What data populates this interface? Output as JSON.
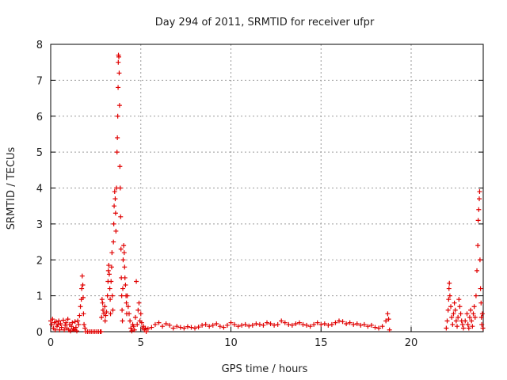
{
  "chart_data": {
    "type": "scatter",
    "title": "Day 294 of 2011, SRMTID for receiver ufpr",
    "xlabel": "GPS time / hours",
    "ylabel": "SRMTID / TECUs",
    "xlim": [
      0,
      24
    ],
    "ylim": [
      0,
      8
    ],
    "xticks": [
      0,
      5,
      10,
      15,
      20
    ],
    "yticks": [
      0,
      1,
      2,
      3,
      4,
      5,
      6,
      7,
      8
    ],
    "grid": true,
    "marker": "+",
    "series": [
      {
        "name": "SRMTID",
        "color": "#e00000",
        "points": [
          [
            0.0,
            0.3
          ],
          [
            0.05,
            0.2
          ],
          [
            0.1,
            0.35
          ],
          [
            0.15,
            0.1
          ],
          [
            0.2,
            0.25
          ],
          [
            0.25,
            0.05
          ],
          [
            0.3,
            0.28
          ],
          [
            0.35,
            0.15
          ],
          [
            0.4,
            0.2
          ],
          [
            0.45,
            0.3
          ],
          [
            0.5,
            0.05
          ],
          [
            0.55,
            0.22
          ],
          [
            0.6,
            0.12
          ],
          [
            0.7,
            0.32
          ],
          [
            0.75,
            0.05
          ],
          [
            0.8,
            0.18
          ],
          [
            0.85,
            0.25
          ],
          [
            0.9,
            0.1
          ],
          [
            0.95,
            0.35
          ],
          [
            1.0,
            0.05
          ],
          [
            1.05,
            0.2
          ],
          [
            1.1,
            0.02
          ],
          [
            1.15,
            0.15
          ],
          [
            1.2,
            0.25
          ],
          [
            1.25,
            0.08
          ],
          [
            1.3,
            0.05
          ],
          [
            1.35,
            0.28
          ],
          [
            1.4,
            0.12
          ],
          [
            1.45,
            0.02
          ],
          [
            1.5,
            0.3
          ],
          [
            1.55,
            0.2
          ],
          [
            1.6,
            0.45
          ],
          [
            1.65,
            0.7
          ],
          [
            1.7,
            0.9
          ],
          [
            1.72,
            1.2
          ],
          [
            1.75,
            1.55
          ],
          [
            1.78,
            1.3
          ],
          [
            1.8,
            0.95
          ],
          [
            1.82,
            0.5
          ],
          [
            1.85,
            0.2
          ],
          [
            1.9,
            0.1
          ],
          [
            1.95,
            0.0
          ],
          [
            2.05,
            0.0
          ],
          [
            2.15,
            0.0
          ],
          [
            2.25,
            0.0
          ],
          [
            2.35,
            0.0
          ],
          [
            2.45,
            0.0
          ],
          [
            2.55,
            0.0
          ],
          [
            2.65,
            0.0
          ],
          [
            2.75,
            0.0
          ],
          [
            2.8,
            0.0
          ],
          [
            2.82,
            0.4
          ],
          [
            2.85,
            0.9
          ],
          [
            2.88,
            0.8
          ],
          [
            2.9,
            0.6
          ],
          [
            2.95,
            0.5
          ],
          [
            3.0,
            0.7
          ],
          [
            3.02,
            0.3
          ],
          [
            3.05,
            0.45
          ],
          [
            3.1,
            0.55
          ],
          [
            3.15,
            1.0
          ],
          [
            3.18,
            1.4
          ],
          [
            3.2,
            1.7
          ],
          [
            3.22,
            1.85
          ],
          [
            3.25,
            1.6
          ],
          [
            3.28,
            1.2
          ],
          [
            3.3,
            0.9
          ],
          [
            3.32,
            0.5
          ],
          [
            3.35,
            1.4
          ],
          [
            3.38,
            1.8
          ],
          [
            3.4,
            2.2
          ],
          [
            3.42,
            1.0
          ],
          [
            3.45,
            0.6
          ],
          [
            3.48,
            2.5
          ],
          [
            3.5,
            3.0
          ],
          [
            3.52,
            3.5
          ],
          [
            3.55,
            3.9
          ],
          [
            3.58,
            3.7
          ],
          [
            3.6,
            3.3
          ],
          [
            3.62,
            2.8
          ],
          [
            3.65,
            4.0
          ],
          [
            3.68,
            5.0
          ],
          [
            3.7,
            5.4
          ],
          [
            3.72,
            6.0
          ],
          [
            3.74,
            6.8
          ],
          [
            3.75,
            7.5
          ],
          [
            3.76,
            7.7
          ],
          [
            3.78,
            7.65
          ],
          [
            3.8,
            7.2
          ],
          [
            3.82,
            6.3
          ],
          [
            3.84,
            4.6
          ],
          [
            3.86,
            4.0
          ],
          [
            3.88,
            3.2
          ],
          [
            3.9,
            2.3
          ],
          [
            3.92,
            1.5
          ],
          [
            3.94,
            1.0
          ],
          [
            3.96,
            0.6
          ],
          [
            3.98,
            0.3
          ],
          [
            4.0,
            1.2
          ],
          [
            4.02,
            2.0
          ],
          [
            4.05,
            2.4
          ],
          [
            4.08,
            2.2
          ],
          [
            4.1,
            1.8
          ],
          [
            4.12,
            1.5
          ],
          [
            4.15,
            1.3
          ],
          [
            4.18,
            1.0
          ],
          [
            4.2,
            0.8
          ],
          [
            4.22,
            0.5
          ],
          [
            4.25,
            1.0
          ],
          [
            4.3,
            0.7
          ],
          [
            4.35,
            0.5
          ],
          [
            4.4,
            0.3
          ],
          [
            4.45,
            0.1
          ],
          [
            4.5,
            0.02
          ],
          [
            4.55,
            0.2
          ],
          [
            4.6,
            0.15
          ],
          [
            4.65,
            0.05
          ],
          [
            4.7,
            0.4
          ],
          [
            4.75,
            1.4
          ],
          [
            4.8,
            0.2
          ],
          [
            4.85,
            0.6
          ],
          [
            4.9,
            0.8
          ],
          [
            4.95,
            0.3
          ],
          [
            5.0,
            0.5
          ],
          [
            5.05,
            0.25
          ],
          [
            5.1,
            0.1
          ],
          [
            5.15,
            0.15
          ],
          [
            5.2,
            0.05
          ],
          [
            5.25,
            0.1
          ],
          [
            5.3,
            0.0
          ],
          [
            5.4,
            0.08
          ],
          [
            5.6,
            0.12
          ],
          [
            5.8,
            0.2
          ],
          [
            6.0,
            0.25
          ],
          [
            6.2,
            0.15
          ],
          [
            6.4,
            0.22
          ],
          [
            6.6,
            0.18
          ],
          [
            6.8,
            0.1
          ],
          [
            7.0,
            0.15
          ],
          [
            7.2,
            0.12
          ],
          [
            7.4,
            0.1
          ],
          [
            7.6,
            0.14
          ],
          [
            7.8,
            0.12
          ],
          [
            8.0,
            0.1
          ],
          [
            8.2,
            0.13
          ],
          [
            8.4,
            0.18
          ],
          [
            8.6,
            0.2
          ],
          [
            8.8,
            0.15
          ],
          [
            9.0,
            0.18
          ],
          [
            9.2,
            0.22
          ],
          [
            9.4,
            0.15
          ],
          [
            9.6,
            0.12
          ],
          [
            9.8,
            0.18
          ],
          [
            10.0,
            0.25
          ],
          [
            10.2,
            0.2
          ],
          [
            10.4,
            0.15
          ],
          [
            10.6,
            0.18
          ],
          [
            10.8,
            0.2
          ],
          [
            11.0,
            0.16
          ],
          [
            11.2,
            0.18
          ],
          [
            11.4,
            0.22
          ],
          [
            11.6,
            0.2
          ],
          [
            11.8,
            0.18
          ],
          [
            12.0,
            0.25
          ],
          [
            12.2,
            0.22
          ],
          [
            12.4,
            0.18
          ],
          [
            12.6,
            0.2
          ],
          [
            12.8,
            0.3
          ],
          [
            13.0,
            0.25
          ],
          [
            13.2,
            0.2
          ],
          [
            13.4,
            0.18
          ],
          [
            13.6,
            0.22
          ],
          [
            13.8,
            0.25
          ],
          [
            14.0,
            0.2
          ],
          [
            14.2,
            0.18
          ],
          [
            14.4,
            0.15
          ],
          [
            14.6,
            0.2
          ],
          [
            14.8,
            0.25
          ],
          [
            15.0,
            0.2
          ],
          [
            15.2,
            0.22
          ],
          [
            15.4,
            0.18
          ],
          [
            15.6,
            0.2
          ],
          [
            15.8,
            0.25
          ],
          [
            16.0,
            0.3
          ],
          [
            16.2,
            0.28
          ],
          [
            16.4,
            0.22
          ],
          [
            16.6,
            0.25
          ],
          [
            16.8,
            0.2
          ],
          [
            17.0,
            0.22
          ],
          [
            17.2,
            0.18
          ],
          [
            17.4,
            0.2
          ],
          [
            17.6,
            0.15
          ],
          [
            17.8,
            0.18
          ],
          [
            18.0,
            0.12
          ],
          [
            18.2,
            0.1
          ],
          [
            18.4,
            0.15
          ],
          [
            18.6,
            0.3
          ],
          [
            18.7,
            0.5
          ],
          [
            18.75,
            0.35
          ],
          [
            18.8,
            0.05
          ],
          [
            21.95,
            0.1
          ],
          [
            22.0,
            0.3
          ],
          [
            22.05,
            0.6
          ],
          [
            22.08,
            0.9
          ],
          [
            22.1,
            1.2
          ],
          [
            22.12,
            1.35
          ],
          [
            22.15,
            1.0
          ],
          [
            22.2,
            0.7
          ],
          [
            22.25,
            0.4
          ],
          [
            22.3,
            0.2
          ],
          [
            22.35,
            0.5
          ],
          [
            22.4,
            0.8
          ],
          [
            22.45,
            0.6
          ],
          [
            22.5,
            0.3
          ],
          [
            22.55,
            0.15
          ],
          [
            22.6,
            0.4
          ],
          [
            22.65,
            0.9
          ],
          [
            22.7,
            0.7
          ],
          [
            22.75,
            0.5
          ],
          [
            22.8,
            0.3
          ],
          [
            22.85,
            0.2
          ],
          [
            22.9,
            0.1
          ],
          [
            23.0,
            0.3
          ],
          [
            23.1,
            0.5
          ],
          [
            23.15,
            0.2
          ],
          [
            23.2,
            0.1
          ],
          [
            23.25,
            0.4
          ],
          [
            23.3,
            0.6
          ],
          [
            23.35,
            0.3
          ],
          [
            23.4,
            0.15
          ],
          [
            23.45,
            0.5
          ],
          [
            23.5,
            0.7
          ],
          [
            23.55,
            0.4
          ],
          [
            23.6,
            1.0
          ],
          [
            23.65,
            1.7
          ],
          [
            23.7,
            2.4
          ],
          [
            23.72,
            3.1
          ],
          [
            23.75,
            3.4
          ],
          [
            23.78,
            3.7
          ],
          [
            23.8,
            3.9
          ],
          [
            23.82,
            2.0
          ],
          [
            23.85,
            1.2
          ],
          [
            23.88,
            0.8
          ],
          [
            23.9,
            0.4
          ],
          [
            23.92,
            0.2
          ],
          [
            23.95,
            0.5
          ],
          [
            23.98,
            0.1
          ]
        ]
      }
    ]
  }
}
